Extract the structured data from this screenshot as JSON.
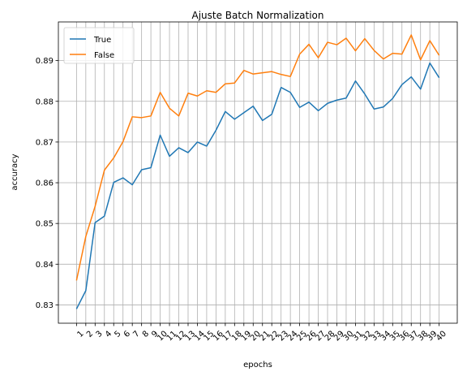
{
  "chart_data": {
    "type": "line",
    "title": "Ajuste Batch Normalization",
    "xlabel": "epochs",
    "ylabel": "accuracy",
    "x": [
      1,
      2,
      3,
      4,
      5,
      6,
      7,
      8,
      9,
      10,
      11,
      12,
      13,
      14,
      15,
      16,
      17,
      18,
      19,
      20,
      21,
      22,
      23,
      24,
      25,
      26,
      27,
      28,
      29,
      30,
      31,
      32,
      33,
      34,
      35,
      36,
      37,
      38,
      39,
      40
    ],
    "xticks": [
      "1",
      "2",
      "3",
      "4",
      "5",
      "6",
      "7",
      "8",
      "9",
      "10",
      "11",
      "12",
      "13",
      "14",
      "15",
      "16",
      "17",
      "18",
      "19",
      "20",
      "21",
      "22",
      "23",
      "24",
      "25",
      "26",
      "27",
      "28",
      "29",
      "30",
      "31",
      "32",
      "33",
      "34",
      "35",
      "36",
      "37",
      "38",
      "39",
      "40"
    ],
    "yticks": [
      "0.83",
      "0.84",
      "0.85",
      "0.86",
      "0.87",
      "0.88",
      "0.89"
    ],
    "ytick_values": [
      0.83,
      0.84,
      0.85,
      0.86,
      0.87,
      0.88,
      0.89
    ],
    "xlim": [
      -0.95,
      41.95
    ],
    "ylim": [
      0.8255,
      0.8995
    ],
    "grid": true,
    "legend_position": "top-left",
    "series": [
      {
        "name": "True",
        "color": "#1f77b4",
        "values": [
          0.829,
          0.8335,
          0.8502,
          0.8518,
          0.8601,
          0.8612,
          0.8595,
          0.8632,
          0.8637,
          0.8717,
          0.8665,
          0.8686,
          0.8674,
          0.87,
          0.869,
          0.8729,
          0.8775,
          0.8756,
          0.8772,
          0.8788,
          0.8753,
          0.8768,
          0.8834,
          0.8822,
          0.8785,
          0.8798,
          0.8777,
          0.8795,
          0.8803,
          0.8808,
          0.885,
          0.8818,
          0.8781,
          0.8786,
          0.8807,
          0.8841,
          0.886,
          0.883,
          0.8894,
          0.8858
        ]
      },
      {
        "name": "False",
        "color": "#ff7f0e",
        "values": [
          0.836,
          0.8468,
          0.8542,
          0.8631,
          0.8661,
          0.8701,
          0.8762,
          0.876,
          0.8764,
          0.8822,
          0.8783,
          0.8764,
          0.882,
          0.8813,
          0.8826,
          0.8822,
          0.8843,
          0.8845,
          0.8876,
          0.8867,
          0.887,
          0.8873,
          0.8866,
          0.8861,
          0.8916,
          0.894,
          0.8907,
          0.8945,
          0.8939,
          0.8955,
          0.8924,
          0.8954,
          0.8925,
          0.8904,
          0.8918,
          0.8916,
          0.8963,
          0.8902,
          0.8949,
          0.8913
        ]
      }
    ]
  }
}
